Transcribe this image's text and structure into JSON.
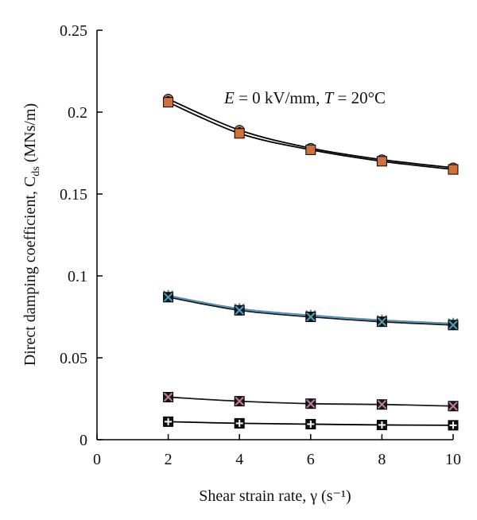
{
  "chart_data": {
    "type": "line",
    "title": "",
    "xlabel": "Shear strain rate, γ (s⁻¹)",
    "ylabel": "Direct damping coefficient, C",
    "ylabel_sub": "ds",
    "ylabel_unit": " (MNs/m)",
    "annotation": {
      "e": "E",
      "e_value": " = 0 kV/mm, ",
      "t": "T",
      "t_value": " = 20°C"
    },
    "xlim": [
      0,
      10
    ],
    "ylim": [
      0,
      0.25
    ],
    "x_ticks": [
      "0",
      "2",
      "4",
      "6",
      "8",
      "10"
    ],
    "y_ticks": [
      "0",
      "0.05",
      "0.1",
      "0.15",
      "0.2",
      "0.25"
    ],
    "grid": false,
    "legend": "none",
    "x": [
      2,
      4,
      6,
      8,
      10
    ],
    "series": [
      {
        "values": [
          0.208,
          0.189,
          0.178,
          0.171,
          0.166
        ],
        "marker": "circle",
        "color": "#000000",
        "fill": "#c8783c"
      },
      {
        "values": [
          0.206,
          0.187,
          0.177,
          0.17,
          0.165
        ],
        "marker": "square",
        "color": "#000000",
        "fill": "#d0703a"
      },
      {
        "values": [
          0.088,
          0.08,
          0.076,
          0.073,
          0.071
        ],
        "marker": "asterisk",
        "color": "#4a90b8",
        "fill": "#4a90b8"
      },
      {
        "values": [
          0.087,
          0.079,
          0.075,
          0.072,
          0.07
        ],
        "marker": "x-square",
        "color": "#1a1a1a",
        "fill": "#4aa0c0"
      },
      {
        "values": [
          0.026,
          0.0235,
          0.022,
          0.0215,
          0.0205
        ],
        "marker": "x-square",
        "color": "#1a1a1a",
        "fill": "#c87a9a"
      },
      {
        "values": [
          0.011,
          0.01,
          0.0095,
          0.009,
          0.0088
        ],
        "marker": "plus-square",
        "color": "#000000",
        "fill": "#ffffff"
      }
    ]
  }
}
